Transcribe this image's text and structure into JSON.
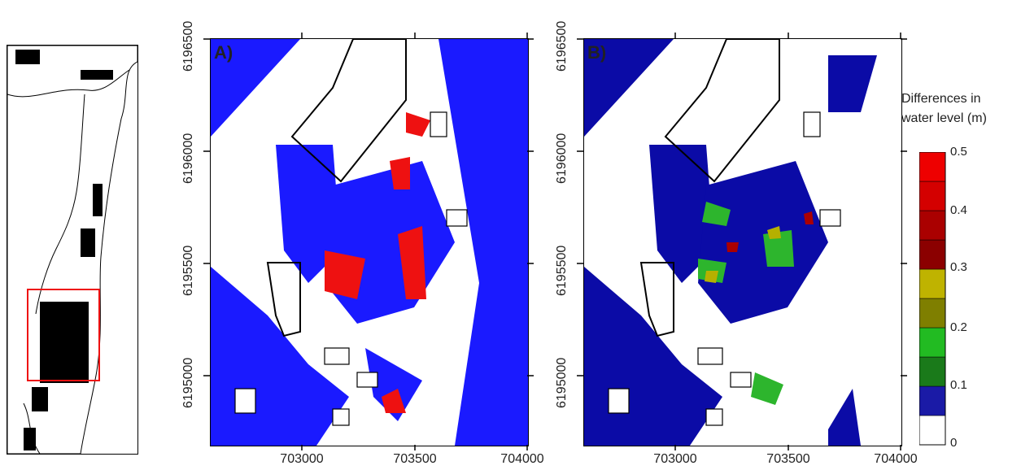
{
  "inset": {
    "name": "overview-map"
  },
  "panels": [
    {
      "label": "A)",
      "scheme": "binary"
    },
    {
      "label": "B)",
      "scheme": "graded"
    }
  ],
  "x_ticks": [
    "703000",
    "703500",
    "704000"
  ],
  "y_ticks": [
    "6195000",
    "6195500",
    "6196000",
    "6196500"
  ],
  "legend": {
    "title_line1": "Differences in",
    "title_line2": "water level  (m)",
    "labels": [
      "0.5",
      "0.4",
      "0.3",
      "0.2",
      "0.1",
      "0"
    ],
    "colors": [
      "#ffffff",
      "#1a1aa6",
      "#1a7a1a",
      "#22bb22",
      "#7f7f00",
      "#bfb300",
      "#8b0000",
      "#aa0000",
      "#d40000",
      "#ee0000"
    ]
  },
  "colors": {
    "water_binary": "#1a1aff",
    "diff_red": "#ee1111",
    "water_graded": "#0b0ba6",
    "green": "#2db52d",
    "olive": "#b5b000"
  }
}
